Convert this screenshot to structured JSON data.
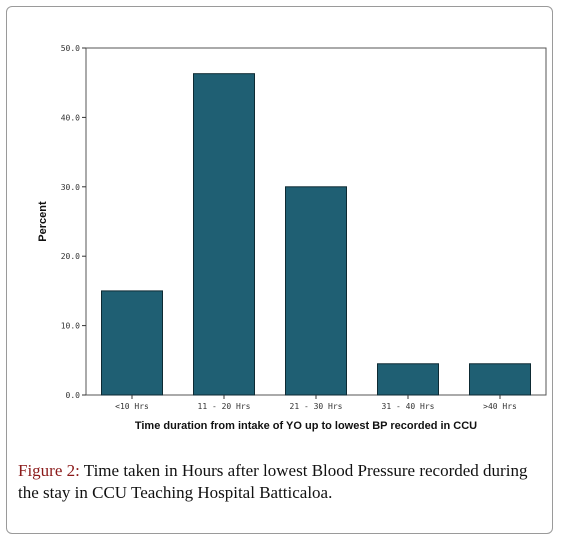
{
  "chart_data": {
    "type": "bar",
    "categories": [
      "<10 Hrs",
      "11 - 20 Hrs",
      "21 - 30 Hrs",
      "31 - 40 Hrs",
      ">40 Hrs"
    ],
    "values": [
      15.0,
      46.3,
      30.0,
      4.5,
      4.5
    ],
    "xlabel": "Time duration from intake of YO up to lowest BP recorded in CCU",
    "ylabel": "Percent",
    "ylim": [
      0,
      50
    ],
    "yticks": [
      "0.0",
      "10.0",
      "20.0",
      "30.0",
      "40.0",
      "50.0"
    ],
    "grid": false,
    "bar_color": "#1f5f73"
  },
  "caption": {
    "label": "Figure 2:",
    "text": " Time taken in Hours after lowest Blood Pressure recorded during the stay in CCU Teaching Hospital Batticaloa.",
    "label_color": "#8b1a1a"
  }
}
